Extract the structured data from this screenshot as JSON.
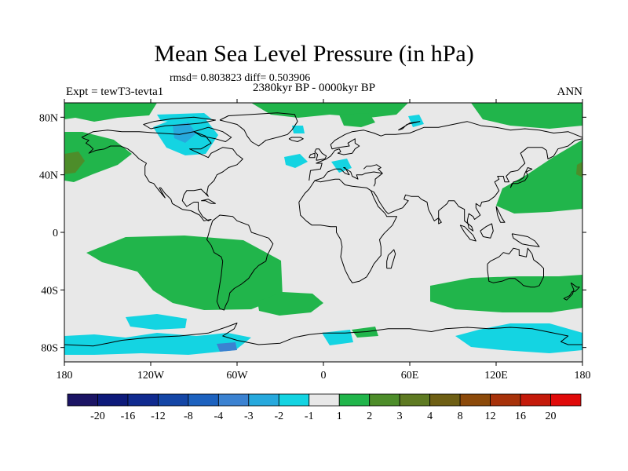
{
  "title": "Mean Sea Level Pressure (in hPa)",
  "stats": "rmsd= 0.803823 diff= 0.503906",
  "experiment": "Expt = tewT3-tevta1",
  "period": "2380kyr BP - 0000kyr BP",
  "season": "ANN",
  "map": {
    "lon_range": [
      -180,
      180
    ],
    "lat_range": [
      -90,
      90
    ],
    "lon_ticks": [
      {
        "value": -180,
        "label": "180"
      },
      {
        "value": -120,
        "label": "120W"
      },
      {
        "value": -60,
        "label": "60W"
      },
      {
        "value": 0,
        "label": "0"
      },
      {
        "value": 60,
        "label": "60E"
      },
      {
        "value": 120,
        "label": "120E"
      },
      {
        "value": 180,
        "label": "180"
      }
    ],
    "lat_ticks": [
      {
        "value": 80,
        "label": "80N"
      },
      {
        "value": 40,
        "label": "40N"
      },
      {
        "value": 0,
        "label": "0"
      },
      {
        "value": -40,
        "label": "40S"
      },
      {
        "value": -80,
        "label": "80S"
      }
    ],
    "background_color": "#e8e8e8"
  },
  "colorbar": {
    "colors": [
      "#1b1464",
      "#0d1a7a",
      "#102a8f",
      "#1446a6",
      "#1d62bf",
      "#3b82d1",
      "#27a9dd",
      "#14d4e2",
      "#e8e8e8",
      "#21b54b",
      "#4d8d2a",
      "#5e7a22",
      "#6e5f14",
      "#8c4a0a",
      "#a7320a",
      "#c41a0a",
      "#e00a0a"
    ],
    "labels": [
      "-20",
      "-16",
      "-12",
      "-8",
      "-4",
      "-3",
      "-2",
      "-1",
      "1",
      "2",
      "3",
      "4",
      "8",
      "12",
      "16",
      "20"
    ]
  }
}
